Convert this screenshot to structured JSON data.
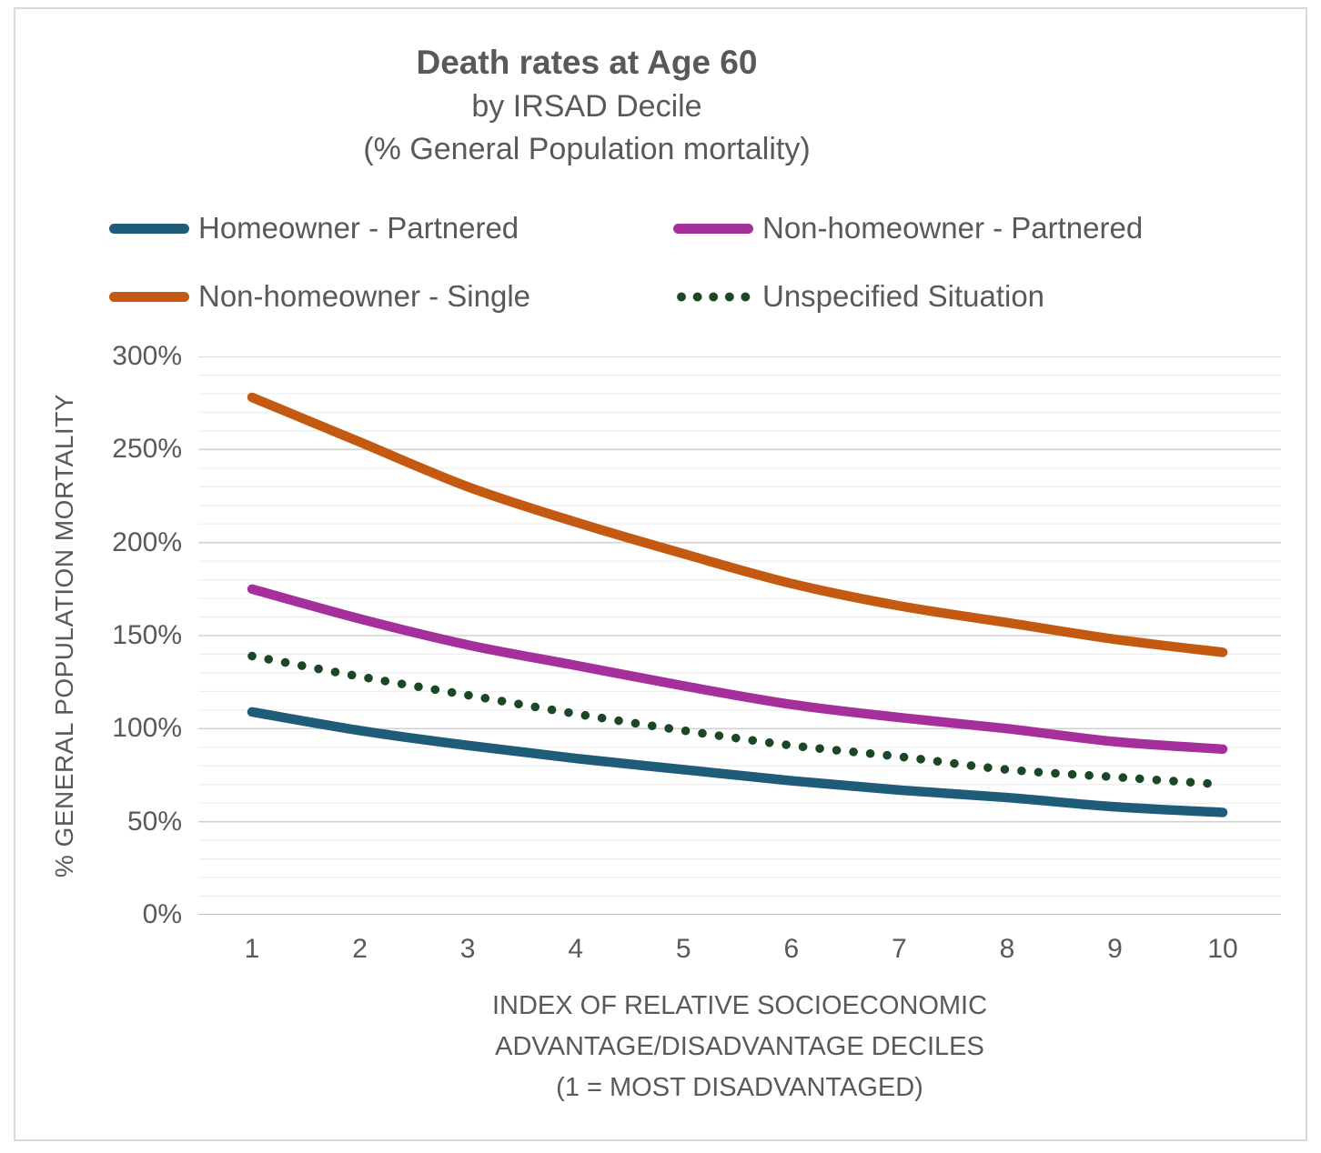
{
  "title": {
    "line1": "Death rates at Age 60",
    "line2": "by IRSAD Decile",
    "line3": "(% General Population mortality)"
  },
  "chart_data": {
    "type": "line",
    "x": [
      1,
      2,
      3,
      4,
      5,
      6,
      7,
      8,
      9,
      10
    ],
    "series": [
      {
        "name": "Homeowner - Partnered",
        "color": "#1E5C7A",
        "style": "solid",
        "values": [
          109,
          99,
          91,
          84,
          78,
          72,
          67,
          63,
          58,
          55
        ]
      },
      {
        "name": "Non-homeowner - Partnered",
        "color": "#A5309C",
        "style": "solid",
        "values": [
          175,
          159,
          145,
          134,
          123,
          113,
          106,
          100,
          93,
          89
        ]
      },
      {
        "name": "Non-homeowner - Single",
        "color": "#C45911",
        "style": "solid",
        "values": [
          278,
          254,
          230,
          211,
          194,
          178,
          166,
          157,
          148,
          141
        ]
      },
      {
        "name": "Unspecified Situation",
        "color": "#1A4827",
        "style": "dotted",
        "values": [
          139,
          128,
          118,
          108,
          99,
          91,
          85,
          78,
          74,
          70
        ]
      }
    ],
    "ylabel": "% GENERAL POPULATION MORTALITY",
    "xlabel_lines": [
      "INDEX OF RELATIVE SOCIOECONOMIC",
      "ADVANTAGE/DISADVANTAGE DECILES",
      "(1 = MOST DISADVANTAGED)"
    ],
    "ylim": [
      0,
      300
    ],
    "ytick_major": 50,
    "ytick_minor": 10,
    "ytick_suffix": "%",
    "grid": "horizontal",
    "legend_position": "top",
    "colors": {
      "text": "#595959",
      "grid_minor": "#ededed",
      "grid_major": "#d2d2d2",
      "axis_line": "#bfbfbf",
      "frame_border": "#d9d9d9"
    }
  }
}
